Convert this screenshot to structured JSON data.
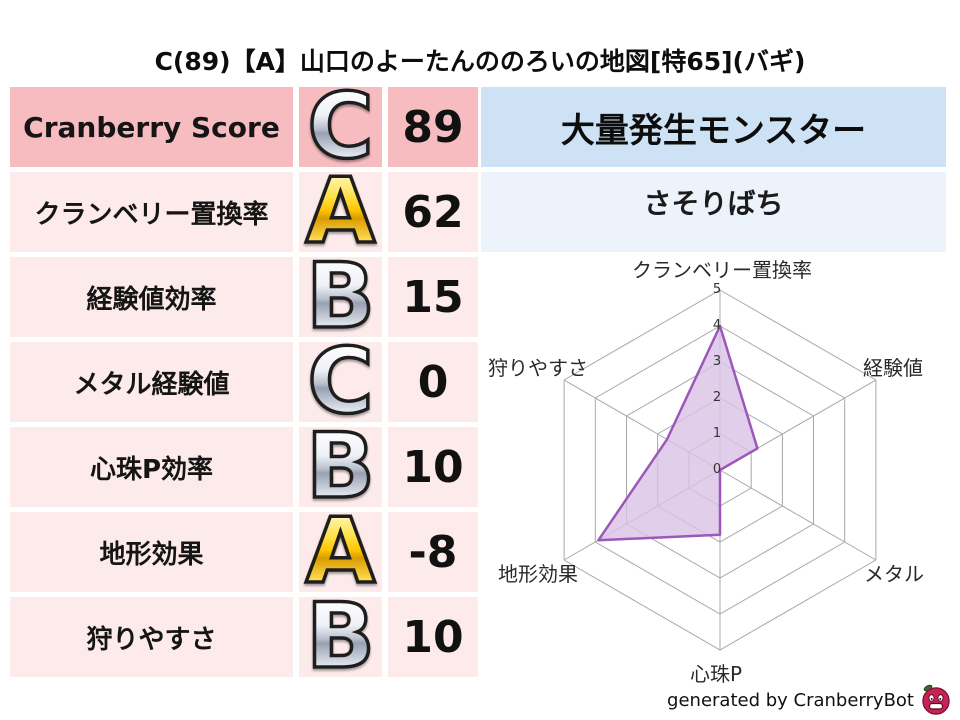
{
  "title": "C(89)【A】山口のよーたんののろいの地図[特65](バギ)",
  "table": {
    "rows": [
      {
        "label": "Cranberry Score",
        "grade": "C",
        "grade_style": "silver",
        "value": "89",
        "highlight": true
      },
      {
        "label": "クランベリー置換率",
        "grade": "A",
        "grade_style": "gold",
        "value": "62",
        "highlight": false
      },
      {
        "label": "経験値効率",
        "grade": "B",
        "grade_style": "silver",
        "value": "15",
        "highlight": false
      },
      {
        "label": "メタル経験値",
        "grade": "C",
        "grade_style": "silver",
        "value": "0",
        "highlight": false
      },
      {
        "label": "心珠P効率",
        "grade": "B",
        "grade_style": "silver",
        "value": "10",
        "highlight": false
      },
      {
        "label": "地形効果",
        "grade": "A",
        "grade_style": "gold",
        "value": "-8",
        "highlight": false
      },
      {
        "label": "狩りやすさ",
        "grade": "B",
        "grade_style": "silver",
        "value": "10",
        "highlight": false
      }
    ]
  },
  "monster_panel": {
    "header": "大量発生モンスター",
    "name": "さそりばち"
  },
  "footer": {
    "text": "generated by CranberryBot",
    "icon": "cranberry-bot-icon"
  },
  "colors": {
    "row_highlight": "#f7bcc0",
    "row_bg": "#fdeaea",
    "panel_header": "#cde3f5",
    "panel_row": "#ecf3fb",
    "gold": "#ffc400",
    "silver": "#bac1ce",
    "radar_fill": "#d9c2e5",
    "radar_stroke": "#9c57b8",
    "radar_grid": "#a8a8a8"
  },
  "chart_data": {
    "type": "radar",
    "axes": [
      "クランベリー置換率",
      "経験値",
      "メタル",
      "心珠P",
      "地形効果",
      "狩りやすさ"
    ],
    "series": [
      {
        "name": "map-scores",
        "values": [
          4.0,
          1.2,
          0.0,
          1.8,
          3.9,
          1.7
        ]
      }
    ],
    "scale_min": 0,
    "scale_max": 5,
    "ticks": [
      "0",
      "1",
      "2",
      "3",
      "4",
      "5"
    ],
    "grid_shape": "hexagon",
    "legend": false,
    "fill": "#d9c2e5",
    "stroke": "#9c57b8",
    "grid_color": "#a8a8a8"
  }
}
